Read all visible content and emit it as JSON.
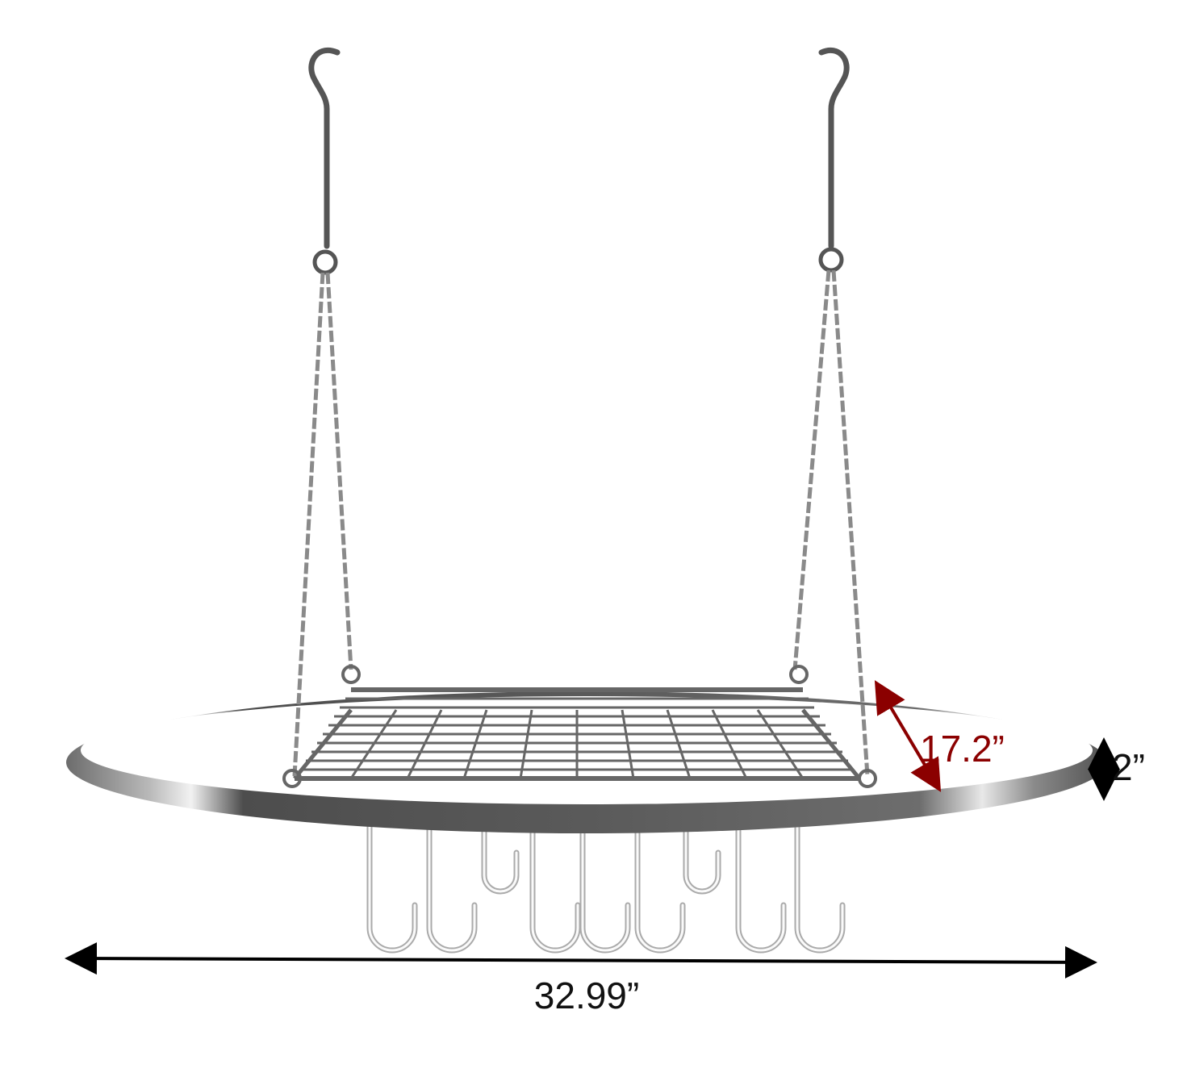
{
  "dimensions": {
    "width": "32.99”",
    "depth": "17.2”",
    "height": "2”"
  }
}
